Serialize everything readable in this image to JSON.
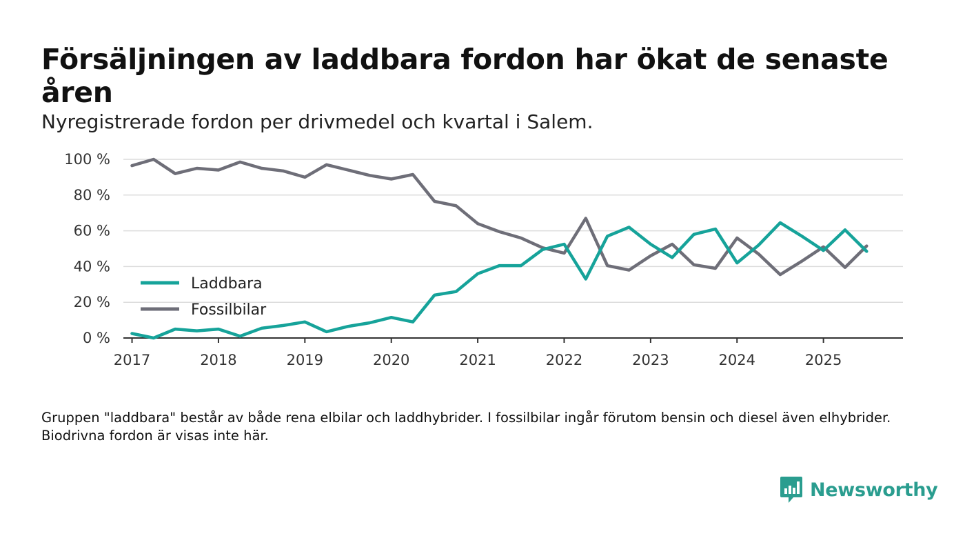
{
  "header": {
    "title": "Försäljningen av laddbara fordon har ökat de senaste åren",
    "subtitle": "Nyregistrerade fordon per drivmedel och kvartal i Salem."
  },
  "footnote": "Gruppen \"laddbara\" består av både rena elbilar och laddhybrider. I fossilbilar ingår förutom bensin och diesel även elhybrider. Biodrivna fordon är visas inte här.",
  "brand": {
    "name": "Newsworthy",
    "icon": "newsworthy-logo-icon",
    "color": "#2a9d8f"
  },
  "chart_data": {
    "type": "line",
    "title": "Försäljningen av laddbara fordon har ökat de senaste åren",
    "subtitle": "Nyregistrerade fordon per drivmedel och kvartal i Salem.",
    "xlabel": "",
    "ylabel": "",
    "grid": true,
    "legend_position": "center-left",
    "xlim": [
      2016.9,
      2025.92
    ],
    "ylim": [
      0,
      100
    ],
    "yticks": [
      0,
      20,
      40,
      60,
      80,
      100
    ],
    "ytick_labels": [
      "0 %",
      "20 %",
      "40 %",
      "60 %",
      "80 %",
      "100 %"
    ],
    "xticks": [
      2017,
      2018,
      2019,
      2020,
      2021,
      2022,
      2023,
      2024,
      2025
    ],
    "xtick_labels": [
      "2017",
      "2018",
      "2019",
      "2020",
      "2021",
      "2022",
      "2023",
      "2024",
      "2025"
    ],
    "x": [
      2017.0,
      2017.25,
      2017.5,
      2017.75,
      2018.0,
      2018.25,
      2018.5,
      2018.75,
      2019.0,
      2019.25,
      2019.5,
      2019.75,
      2020.0,
      2020.25,
      2020.5,
      2020.75,
      2021.0,
      2021.25,
      2021.5,
      2021.75,
      2022.0,
      2022.25,
      2022.5,
      2022.75,
      2023.0,
      2023.25,
      2023.5,
      2023.75,
      2024.0,
      2024.25,
      2024.5,
      2024.75,
      2025.0,
      2025.25,
      2025.5
    ],
    "series": [
      {
        "name": "Laddbara",
        "color": "#16a39a",
        "values": [
          2.5,
          0,
          5,
          4,
          5,
          1,
          5.5,
          7,
          9,
          3.5,
          6.5,
          8.5,
          11.5,
          9,
          24,
          26,
          36,
          40.5,
          40.5,
          49.5,
          52.5,
          33,
          57,
          62,
          52.5,
          45,
          58,
          61,
          42,
          52,
          64.5,
          57,
          49,
          60.5,
          48.5
        ]
      },
      {
        "name": "Fossilbilar",
        "color": "#6e6e78",
        "values": [
          96.5,
          100,
          92,
          95,
          94,
          98.5,
          95,
          93.5,
          90,
          97,
          94,
          91,
          89,
          91.5,
          76.5,
          74,
          64,
          59.5,
          56,
          50.5,
          47.5,
          67,
          40.5,
          38,
          46,
          52.5,
          41,
          39,
          56,
          47,
          35.5,
          43,
          51,
          39.5,
          51.5
        ]
      }
    ]
  }
}
